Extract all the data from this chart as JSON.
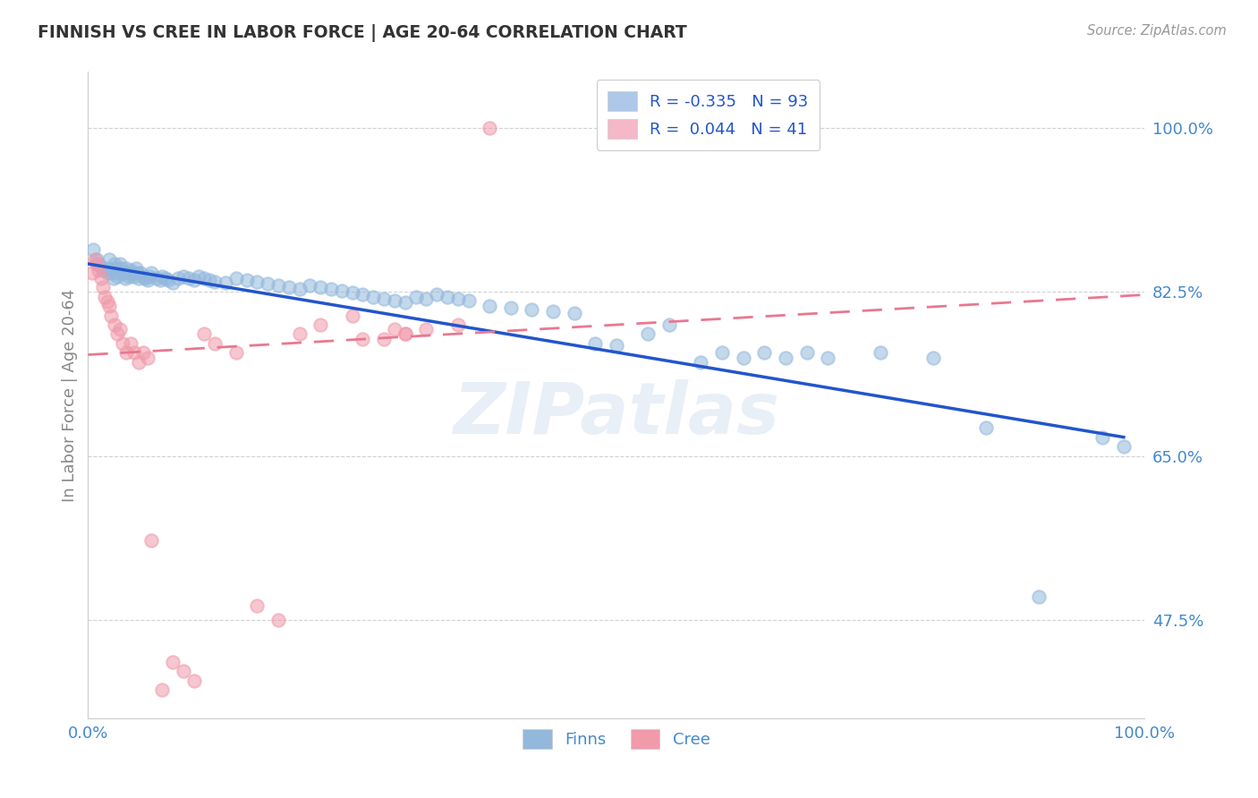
{
  "title": "FINNISH VS CREE IN LABOR FORCE | AGE 20-64 CORRELATION CHART",
  "source": "Source: ZipAtlas.com",
  "ylabel": "In Labor Force | Age 20-64",
  "ytick_labels": [
    "100.0%",
    "82.5%",
    "65.0%",
    "47.5%"
  ],
  "ytick_values": [
    1.0,
    0.825,
    0.65,
    0.475
  ],
  "xlim": [
    0.0,
    1.0
  ],
  "ylim": [
    0.37,
    1.06
  ],
  "watermark": "ZIPatlas",
  "legend_entries": [
    {
      "label": "R = -0.335   N = 93",
      "color": "#adc8e8"
    },
    {
      "label": "R =  0.044   N = 41",
      "color": "#f4b8c8"
    }
  ],
  "finns_color": "#93b8dc",
  "cree_color": "#f09aaa",
  "finns_line_color": "#2255cc",
  "cree_line_color": "#e87890",
  "finns_scatter": {
    "x": [
      0.005,
      0.008,
      0.01,
      0.012,
      0.015,
      0.018,
      0.02,
      0.02,
      0.022,
      0.024,
      0.025,
      0.026,
      0.027,
      0.028,
      0.03,
      0.031,
      0.033,
      0.035,
      0.036,
      0.038,
      0.039,
      0.04,
      0.042,
      0.043,
      0.045,
      0.046,
      0.048,
      0.05,
      0.052,
      0.054,
      0.056,
      0.058,
      0.06,
      0.065,
      0.068,
      0.07,
      0.073,
      0.076,
      0.08,
      0.085,
      0.09,
      0.095,
      0.1,
      0.105,
      0.11,
      0.115,
      0.12,
      0.13,
      0.14,
      0.15,
      0.16,
      0.17,
      0.18,
      0.19,
      0.2,
      0.21,
      0.22,
      0.23,
      0.24,
      0.25,
      0.26,
      0.27,
      0.28,
      0.29,
      0.3,
      0.31,
      0.32,
      0.33,
      0.34,
      0.35,
      0.36,
      0.38,
      0.4,
      0.42,
      0.44,
      0.46,
      0.48,
      0.5,
      0.53,
      0.55,
      0.58,
      0.6,
      0.62,
      0.64,
      0.66,
      0.68,
      0.7,
      0.75,
      0.8,
      0.85,
      0.9,
      0.96,
      0.98
    ],
    "y": [
      0.87,
      0.86,
      0.855,
      0.852,
      0.848,
      0.845,
      0.86,
      0.85,
      0.845,
      0.84,
      0.855,
      0.85,
      0.845,
      0.842,
      0.855,
      0.85,
      0.845,
      0.84,
      0.85,
      0.845,
      0.842,
      0.848,
      0.845,
      0.842,
      0.85,
      0.845,
      0.84,
      0.845,
      0.842,
      0.84,
      0.838,
      0.842,
      0.845,
      0.84,
      0.838,
      0.842,
      0.84,
      0.838,
      0.835,
      0.84,
      0.842,
      0.84,
      0.838,
      0.842,
      0.84,
      0.838,
      0.836,
      0.835,
      0.84,
      0.838,
      0.836,
      0.834,
      0.832,
      0.83,
      0.828,
      0.832,
      0.83,
      0.828,
      0.826,
      0.824,
      0.822,
      0.82,
      0.818,
      0.816,
      0.814,
      0.82,
      0.818,
      0.822,
      0.82,
      0.818,
      0.816,
      0.81,
      0.808,
      0.806,
      0.804,
      0.802,
      0.77,
      0.768,
      0.78,
      0.79,
      0.75,
      0.76,
      0.755,
      0.76,
      0.755,
      0.76,
      0.755,
      0.76,
      0.755,
      0.68,
      0.5,
      0.67,
      0.66
    ]
  },
  "cree_scatter": {
    "x": [
      0.004,
      0.006,
      0.008,
      0.01,
      0.012,
      0.014,
      0.016,
      0.018,
      0.02,
      0.022,
      0.025,
      0.028,
      0.03,
      0.033,
      0.036,
      0.04,
      0.044,
      0.048,
      0.052,
      0.056,
      0.06,
      0.07,
      0.08,
      0.09,
      0.1,
      0.11,
      0.12,
      0.14,
      0.16,
      0.18,
      0.2,
      0.22,
      0.25,
      0.28,
      0.3,
      0.32,
      0.35,
      0.38,
      0.3,
      0.26,
      0.29
    ],
    "y": [
      0.845,
      0.86,
      0.855,
      0.848,
      0.84,
      0.83,
      0.82,
      0.815,
      0.81,
      0.8,
      0.79,
      0.78,
      0.785,
      0.77,
      0.76,
      0.77,
      0.76,
      0.75,
      0.76,
      0.755,
      0.56,
      0.4,
      0.43,
      0.42,
      0.41,
      0.78,
      0.77,
      0.76,
      0.49,
      0.475,
      0.78,
      0.79,
      0.8,
      0.775,
      0.78,
      0.785,
      0.79,
      1.0,
      0.78,
      0.775,
      0.785
    ]
  },
  "finns_trendline": {
    "x_start": 0.0,
    "x_end": 0.98,
    "y_start": 0.855,
    "y_end": 0.67
  },
  "cree_trendline": {
    "x_start": 0.0,
    "x_end": 1.0,
    "y_start": 0.758,
    "y_end": 0.822
  },
  "background_color": "#ffffff",
  "grid_color": "#cccccc",
  "title_color": "#333333",
  "axis_label_color": "#4488cc",
  "legend_text_color": "#2255cc",
  "axis_color": "#888888"
}
